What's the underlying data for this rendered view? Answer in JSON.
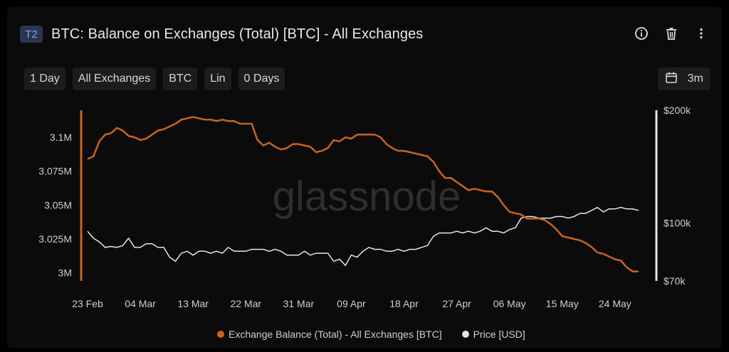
{
  "header": {
    "badge": "T2",
    "title": "BTC: Balance on Exchanges (Total) [BTC] - All Exchanges",
    "icons": [
      "info-icon",
      "trash-icon",
      "more-vertical-icon"
    ]
  },
  "toolbar": {
    "resolution": "1 Day",
    "exchange": "All Exchanges",
    "asset": "BTC",
    "scale": "Lin",
    "sma": "0 Days",
    "range_label": "3m",
    "range_icon": "calendar-icon"
  },
  "watermark": "glassnode",
  "colors": {
    "balance": "#c8641c",
    "price": "#e6e6e6",
    "background": "#0b0b0c"
  },
  "chart_data": {
    "type": "line",
    "title": "BTC: Balance on Exchanges (Total) [BTC] - All Exchanges",
    "x_tick_labels": [
      "23 Feb",
      "04 Mar",
      "13 Mar",
      "22 Mar",
      "31 Mar",
      "09 Apr",
      "18 Apr",
      "27 Apr",
      "06 May",
      "15 May",
      "24 May"
    ],
    "x_start_label": "23 Feb",
    "x_days": 95,
    "left_axis": {
      "ticks": [
        3000000,
        3025000,
        3050000,
        3075000,
        3100000
      ],
      "tick_labels": [
        "3M",
        "3.025M",
        "3.05M",
        "3.075M",
        "3.1M"
      ],
      "ylim": [
        2994000,
        3120000
      ]
    },
    "right_axis": {
      "scale": "log",
      "ticks": [
        70000,
        100000,
        200000
      ],
      "tick_labels": [
        "$70k",
        "$100k",
        "$200k"
      ],
      "ylim": [
        70000,
        200000
      ]
    },
    "series": [
      {
        "name": "Exchange Balance (Total) - All Exchanges [BTC]",
        "axis": "left",
        "color": "#c8641c",
        "values": [
          3084000,
          3086000,
          3097000,
          3102000,
          3103000,
          3107000,
          3105000,
          3101000,
          3100000,
          3098000,
          3099000,
          3102000,
          3105000,
          3106000,
          3108000,
          3110000,
          3113000,
          3114000,
          3115000,
          3114000,
          3113000,
          3113000,
          3112000,
          3113000,
          3112000,
          3112000,
          3110000,
          3110000,
          3110000,
          3098000,
          3094000,
          3096000,
          3093000,
          3091000,
          3092000,
          3095000,
          3095000,
          3094000,
          3093000,
          3089000,
          3090000,
          3092000,
          3098000,
          3097000,
          3100000,
          3099000,
          3102000,
          3102000,
          3102000,
          3102000,
          3100000,
          3095000,
          3092000,
          3090000,
          3090000,
          3089000,
          3088000,
          3087000,
          3086000,
          3082000,
          3075000,
          3070000,
          3070000,
          3067000,
          3064000,
          3061000,
          3062000,
          3061000,
          3060000,
          3060000,
          3056000,
          3050000,
          3045000,
          3044000,
          3043000,
          3040000,
          3040000,
          3040000,
          3039000,
          3036000,
          3032000,
          3027000,
          3026000,
          3025000,
          3024000,
          3022000,
          3019000,
          3015000,
          3014000,
          3012000,
          3010000,
          3009000,
          3004000,
          3001000,
          3001000
        ]
      },
      {
        "name": "Price [USD]",
        "axis": "right",
        "color": "#e6e6e6",
        "values": [
          95000,
          91000,
          89000,
          86000,
          86500,
          86000,
          87000,
          91000,
          86000,
          86000,
          88000,
          88000,
          86000,
          86000,
          81000,
          79000,
          83000,
          84000,
          82000,
          84000,
          84000,
          83000,
          84000,
          83000,
          86000,
          84000,
          84000,
          84000,
          85000,
          85000,
          85000,
          84000,
          85000,
          84000,
          82000,
          82000,
          82000,
          84000,
          82000,
          83000,
          83000,
          83000,
          79000,
          80000,
          77000,
          82000,
          81000,
          84000,
          86000,
          85000,
          85000,
          84000,
          84000,
          85000,
          84000,
          85000,
          85000,
          86000,
          87000,
          92000,
          94000,
          94000,
          94000,
          95000,
          94000,
          95000,
          94000,
          95000,
          97000,
          95000,
          95000,
          94000,
          96000,
          97000,
          103000,
          104000,
          104000,
          103000,
          103000,
          103000,
          104000,
          104000,
          103000,
          104000,
          106000,
          106000,
          108000,
          110000,
          107000,
          109000,
          109000,
          110000,
          109000,
          109000,
          108000
        ]
      }
    ],
    "legend": [
      "Exchange Balance (Total) - All Exchanges [BTC]",
      "Price [USD]"
    ],
    "legend_position": "bottom-center",
    "grid": false
  }
}
